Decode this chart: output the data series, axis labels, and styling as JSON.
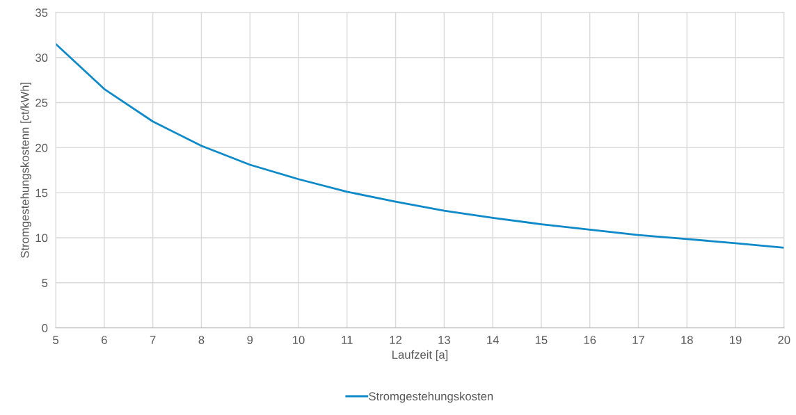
{
  "chart_data": {
    "type": "line",
    "xlabel": "Laufzeit [a]",
    "ylabel": "Stromgestehungskostenn [ct/kWh]",
    "x": [
      5,
      6,
      7,
      8,
      9,
      10,
      11,
      12,
      13,
      14,
      15,
      16,
      17,
      18,
      19,
      20
    ],
    "series": [
      {
        "name": "Stromgestehungskosten",
        "color": "#0e8ac8",
        "values": [
          31.5,
          26.5,
          22.9,
          20.2,
          18.1,
          16.5,
          15.1,
          14.0,
          13.0,
          12.2,
          11.5,
          10.9,
          10.3,
          9.85,
          9.4,
          8.9
        ]
      }
    ],
    "xlim": [
      5,
      20
    ],
    "xticks": [
      5,
      6,
      7,
      8,
      9,
      10,
      11,
      12,
      13,
      14,
      15,
      16,
      17,
      18,
      19,
      20
    ],
    "ylim": [
      0,
      35
    ],
    "yticks": [
      0,
      5,
      10,
      15,
      20,
      25,
      30,
      35
    ],
    "grid": true,
    "legend": "bottom",
    "marker": "none",
    "line_style": "solid"
  }
}
